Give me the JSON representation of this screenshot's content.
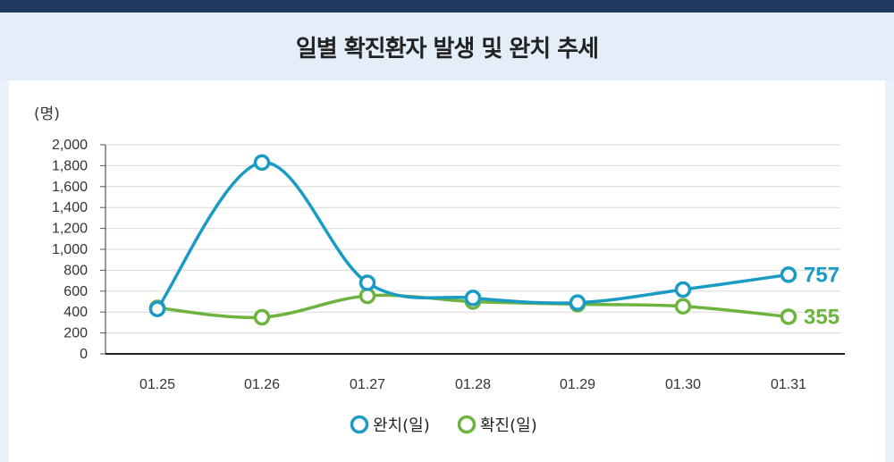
{
  "title": "일별 확진환자 발생 및 완치 추세",
  "colors": {
    "blue": "#1a9bc4",
    "green": "#6db33f"
  },
  "chart_data": {
    "type": "line",
    "title": "일별 확진환자 발생 및 완치 추세",
    "xlabel": "",
    "ylabel": "(명)",
    "categories": [
      "01.25",
      "01.26",
      "01.27",
      "01.28",
      "01.29",
      "01.30",
      "01.31"
    ],
    "ylim": [
      0,
      2000
    ],
    "yticks": [
      0,
      200,
      400,
      600,
      800,
      1000,
      1200,
      1400,
      1600,
      1800,
      2000
    ],
    "ytick_labels": [
      "0",
      "200",
      "400",
      "600",
      "800",
      "1,000",
      "1,200",
      "1,400",
      "1,600",
      "1,800",
      "2,000"
    ],
    "grid": true,
    "legend_position": "bottom-center",
    "series": [
      {
        "name": "완치(일)",
        "color": "#1a9bc4",
        "values": [
          430,
          1830,
          680,
          535,
          490,
          615,
          757
        ],
        "end_label": "757"
      },
      {
        "name": "확진(일)",
        "color": "#6db33f",
        "values": [
          440,
          350,
          555,
          500,
          475,
          455,
          355
        ],
        "end_label": "355"
      }
    ]
  }
}
